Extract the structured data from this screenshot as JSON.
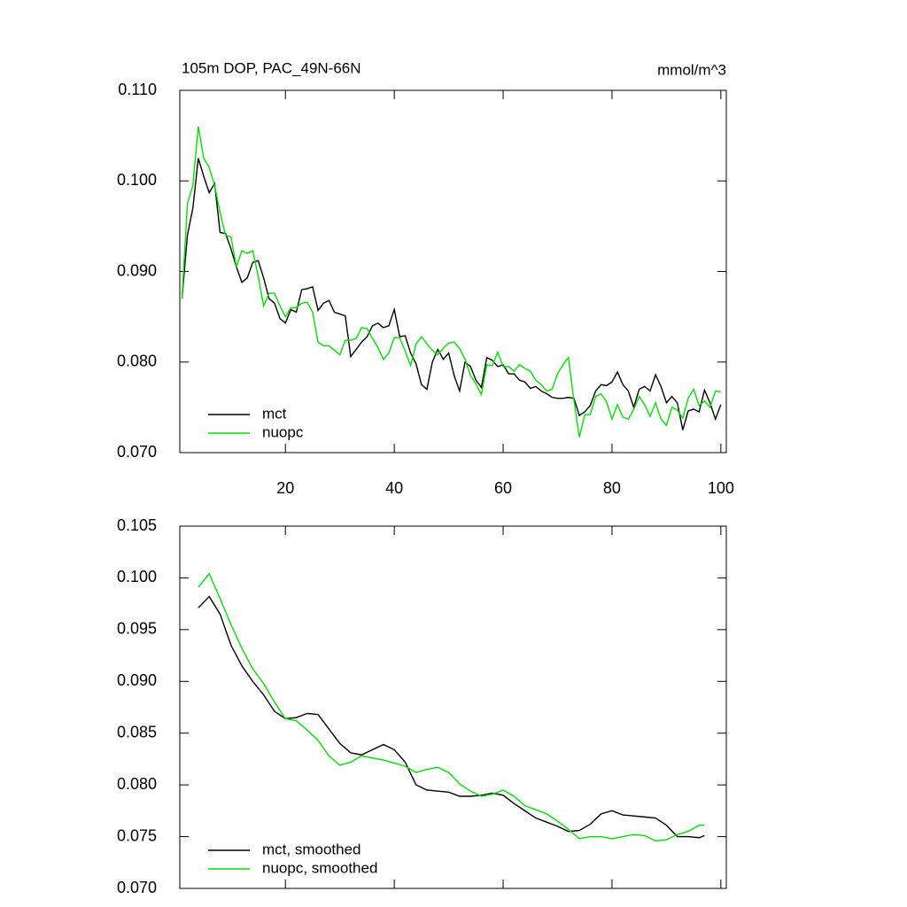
{
  "chart_data": [
    {
      "type": "line",
      "title": "105m DOP, PAC_49N-66N",
      "units": "mmol/m^3",
      "legend": "lower left",
      "x": [
        1,
        2,
        3,
        4,
        5,
        6,
        7,
        8,
        9,
        10,
        11,
        12,
        13,
        14,
        15,
        16,
        17,
        18,
        19,
        20,
        21,
        22,
        23,
        24,
        25,
        26,
        27,
        28,
        29,
        30,
        31,
        32,
        33,
        34,
        35,
        36,
        37,
        38,
        39,
        40,
        41,
        42,
        43,
        44,
        45,
        46,
        47,
        48,
        49,
        50,
        51,
        52,
        53,
        54,
        55,
        56,
        57,
        58,
        59,
        60,
        61,
        62,
        63,
        64,
        65,
        66,
        67,
        68,
        69,
        70,
        71,
        72,
        73,
        74,
        75,
        76,
        77,
        78,
        79,
        80,
        81,
        82,
        83,
        84,
        85,
        86,
        87,
        88,
        89,
        90,
        91,
        92,
        93,
        94,
        95,
        96,
        97,
        98,
        99,
        100
      ],
      "xlim": [
        0.6,
        101.0
      ],
      "xticks": [
        20,
        40,
        60,
        80,
        100
      ],
      "ylim": [
        0.07,
        0.11
      ],
      "yticks": [
        {
          "value": 0.07,
          "label": "0.070"
        },
        {
          "value": 0.08,
          "label": "0.080"
        },
        {
          "value": 0.09,
          "label": "0.090"
        },
        {
          "value": 0.1,
          "label": "0.100"
        },
        {
          "value": 0.11,
          "label": "0.110"
        }
      ],
      "series": [
        {
          "name": "mct",
          "color": "#000000",
          "values": [
            0.087,
            0.094,
            0.097,
            0.1025,
            0.1005,
            0.0987,
            0.0997,
            0.0943,
            0.0942,
            0.0925,
            0.0905,
            0.0888,
            0.0893,
            0.091,
            0.0912,
            0.0893,
            0.087,
            0.0865,
            0.0848,
            0.0843,
            0.0858,
            0.0855,
            0.088,
            0.0881,
            0.0883,
            0.0857,
            0.0865,
            0.0868,
            0.0855,
            0.0853,
            0.0851,
            0.0806,
            0.0814,
            0.0822,
            0.0828,
            0.084,
            0.0843,
            0.0838,
            0.084,
            0.0858,
            0.0828,
            0.0829,
            0.081,
            0.0798,
            0.0775,
            0.077,
            0.08,
            0.0814,
            0.0803,
            0.081,
            0.0785,
            0.0768,
            0.08,
            0.0795,
            0.078,
            0.0772,
            0.0805,
            0.0802,
            0.0795,
            0.0797,
            0.0787,
            0.0787,
            0.078,
            0.0778,
            0.0771,
            0.0773,
            0.0768,
            0.0765,
            0.0761,
            0.076,
            0.076,
            0.0761,
            0.076,
            0.0741,
            0.0745,
            0.0752,
            0.0768,
            0.0775,
            0.0774,
            0.0778,
            0.0789,
            0.0775,
            0.0768,
            0.075,
            0.077,
            0.0773,
            0.0768,
            0.0786,
            0.0773,
            0.0755,
            0.0762,
            0.0755,
            0.0725,
            0.0746,
            0.0748,
            0.0745,
            0.0769,
            0.0755,
            0.0737,
            0.0753
          ]
        },
        {
          "name": "nuopc",
          "color": "#00e000",
          "values": [
            0.087,
            0.0975,
            0.0995,
            0.106,
            0.1025,
            0.1015,
            0.0995,
            0.0965,
            0.094,
            0.0938,
            0.0905,
            0.0923,
            0.092,
            0.0923,
            0.0895,
            0.0862,
            0.0876,
            0.0876,
            0.0862,
            0.085,
            0.086,
            0.086,
            0.0865,
            0.0866,
            0.0855,
            0.0822,
            0.0818,
            0.0818,
            0.0813,
            0.0808,
            0.0824,
            0.0824,
            0.0826,
            0.0838,
            0.0837,
            0.0826,
            0.0816,
            0.0803,
            0.081,
            0.0827,
            0.0827,
            0.0812,
            0.0796,
            0.082,
            0.0828,
            0.082,
            0.0813,
            0.0808,
            0.0815,
            0.0821,
            0.0822,
            0.0815,
            0.0803,
            0.0785,
            0.0776,
            0.0764,
            0.0797,
            0.0796,
            0.0811,
            0.0795,
            0.0795,
            0.079,
            0.0797,
            0.0793,
            0.079,
            0.078,
            0.0775,
            0.0768,
            0.077,
            0.0787,
            0.0797,
            0.0805,
            0.0758,
            0.0717,
            0.0742,
            0.0742,
            0.0762,
            0.0765,
            0.0756,
            0.0737,
            0.0753,
            0.0739,
            0.0737,
            0.0748,
            0.0762,
            0.0753,
            0.074,
            0.0755,
            0.0737,
            0.073,
            0.075,
            0.0747,
            0.0738,
            0.076,
            0.077,
            0.0752,
            0.0757,
            0.075,
            0.0768,
            0.0767
          ]
        }
      ]
    },
    {
      "type": "line",
      "legend": "lower left",
      "x": [
        4,
        6,
        8,
        10,
        12,
        14,
        16,
        18,
        20,
        22,
        24,
        26,
        28,
        30,
        32,
        34,
        36,
        38,
        40,
        42,
        44,
        46,
        48,
        50,
        52,
        54,
        56,
        58,
        60,
        62,
        64,
        66,
        68,
        70,
        72,
        74,
        76,
        78,
        80,
        82,
        84,
        86,
        88,
        90,
        92,
        94,
        96,
        97
      ],
      "xlim": [
        0.6,
        101.0
      ],
      "ylim": [
        0.07,
        0.105
      ],
      "yticks": [
        {
          "value": 0.07,
          "label": "0.070"
        },
        0.075,
        {
          "value": 0.08,
          "label": "0.080"
        },
        0.085,
        {
          "value": 0.09,
          "label": "0.090"
        },
        0.095,
        {
          "value": 0.1,
          "label": "0.100"
        },
        0.105
      ],
      "series": [
        {
          "name": "mct, smoothed",
          "color": "#000000",
          "values": [
            0.0971,
            0.0982,
            0.0965,
            0.0935,
            0.0915,
            0.09,
            0.0887,
            0.0871,
            0.0864,
            0.0865,
            0.0869,
            0.0868,
            0.0854,
            0.084,
            0.0831,
            0.0829,
            0.0834,
            0.0839,
            0.0834,
            0.0822,
            0.08,
            0.0795,
            0.0794,
            0.0793,
            0.0789,
            0.0789,
            0.079,
            0.0792,
            0.079,
            0.0782,
            0.0775,
            0.0768,
            0.0764,
            0.076,
            0.0755,
            0.0756,
            0.0762,
            0.0772,
            0.0775,
            0.0771,
            0.077,
            0.0769,
            0.0768,
            0.0761,
            0.075,
            0.075,
            0.0749,
            0.0751
          ]
        },
        {
          "name": "nuopc, smoothed",
          "color": "#00e000",
          "values": [
            0.0991,
            0.1004,
            0.098,
            0.0955,
            0.0932,
            0.0912,
            0.0898,
            0.088,
            0.0864,
            0.0862,
            0.0853,
            0.0843,
            0.0828,
            0.0819,
            0.0822,
            0.0828,
            0.0826,
            0.0824,
            0.0821,
            0.0818,
            0.0812,
            0.0815,
            0.0817,
            0.0812,
            0.0801,
            0.0794,
            0.0789,
            0.0791,
            0.0795,
            0.0789,
            0.078,
            0.0776,
            0.0772,
            0.0765,
            0.0757,
            0.0748,
            0.075,
            0.075,
            0.0748,
            0.075,
            0.0752,
            0.0751,
            0.0746,
            0.0747,
            0.0752,
            0.0755,
            0.0761,
            0.0761
          ]
        }
      ]
    }
  ]
}
